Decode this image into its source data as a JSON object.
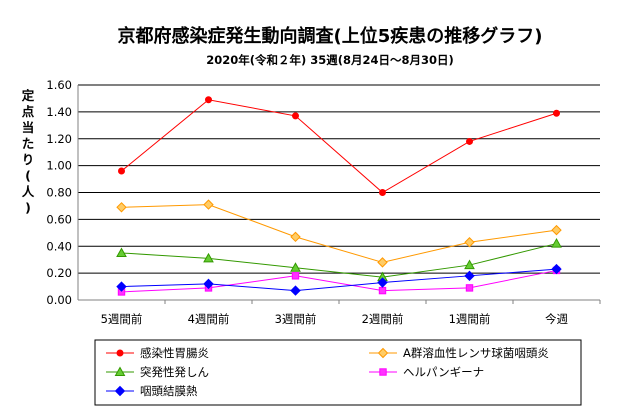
{
  "colors": {
    "series": [
      "#ff0000",
      "#ff9900",
      "#339900",
      "#ff00ff",
      "#0000ff"
    ],
    "marker_fill": [
      "#ff0000",
      "#ffcc66",
      "#66cc33",
      "#ff33ff",
      "#0000ff"
    ]
  },
  "chart_data": {
    "type": "line",
    "title": "京都府感染症発生動向調査(上位5疾患の推移グラフ)",
    "subtitle": "2020年(令和２年) 35週(8月24日～8月30日)",
    "ylabel": "定点当たり(人)",
    "xlabel": "",
    "categories": [
      "5週間前",
      "4週間前",
      "3週間前",
      "2週間前",
      "1週間前",
      "今週"
    ],
    "ylim": [
      0,
      1.6
    ],
    "yticks": [
      "0.00",
      "0.20",
      "0.40",
      "0.60",
      "0.80",
      "1.00",
      "1.20",
      "1.40",
      "1.60"
    ],
    "grid": true,
    "legend_position": "bottom",
    "series": [
      {
        "name": "感染性胃腸炎",
        "marker": "circle",
        "values": [
          0.96,
          1.49,
          1.37,
          0.8,
          1.18,
          1.39
        ]
      },
      {
        "name": "A群溶血性レンサ球菌咽頭炎",
        "marker": "diamond",
        "values": [
          0.69,
          0.71,
          0.47,
          0.28,
          0.43,
          0.52
        ]
      },
      {
        "name": "突発性発しん",
        "marker": "triangle",
        "values": [
          0.35,
          0.31,
          0.24,
          0.17,
          0.26,
          0.42
        ]
      },
      {
        "name": "ヘルパンギーナ",
        "marker": "square",
        "values": [
          0.06,
          0.09,
          0.18,
          0.07,
          0.09,
          0.22
        ]
      },
      {
        "name": "咽頭結膜熱",
        "marker": "diamond",
        "values": [
          0.1,
          0.12,
          0.07,
          0.13,
          0.18,
          0.23
        ]
      }
    ]
  }
}
